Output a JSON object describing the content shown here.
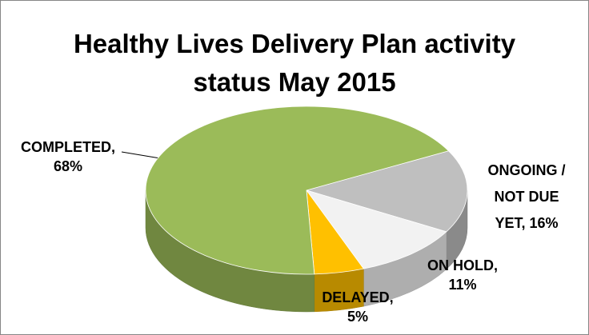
{
  "chart_data": {
    "type": "pie",
    "title": "Healthy Lives Delivery Plan activity status May 2015",
    "categories": [
      "COMPLETED,",
      "ONGOING / NOT DUE YET,",
      "ON HOLD,",
      "DELAYED,"
    ],
    "values": [
      68,
      16,
      11,
      5
    ],
    "value_labels": [
      "68%",
      "16%",
      "11%",
      "5%"
    ],
    "colors": [
      "#9bbb59",
      "#bfbfbf",
      "#f2f2f2",
      "#ffc000"
    ],
    "three_d": true
  }
}
